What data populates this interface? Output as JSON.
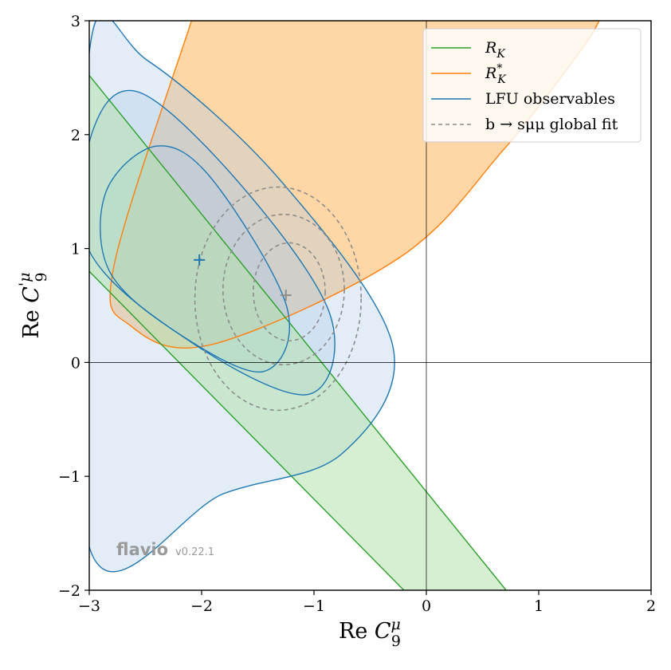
{
  "chart_data": {
    "type": "contour",
    "xlabel": "Re C_9^μ",
    "ylabel": "Re C_9'^μ",
    "xlim": [
      -3,
      2
    ],
    "ylim": [
      -2,
      3
    ],
    "xticks": [
      "−3",
      "−2",
      "−1",
      "0",
      "1",
      "2"
    ],
    "yticks": [
      "−2",
      "−1",
      "0",
      "1",
      "2",
      "3"
    ],
    "legend_position": "top-right",
    "legend": [
      {
        "label": "R_K",
        "color": "#2ca02c",
        "style": "solid"
      },
      {
        "label": "R_K^*",
        "color": "#ff7f0e",
        "style": "solid"
      },
      {
        "label": "LFU observables",
        "color": "#1f77b4",
        "style": "solid"
      },
      {
        "label": "b → sμμ global fit",
        "color": "#8c8c8c",
        "style": "dashed"
      }
    ],
    "series": [
      {
        "name": "R_K",
        "kind": "band",
        "color": "#2ca02c",
        "fill": "#b5e2ad",
        "upper_line": [
          [
            -3,
            2.52
          ],
          [
            0.71,
            -2
          ]
        ],
        "lower_line": [
          [
            -3,
            0.8
          ],
          [
            -0.2,
            -2
          ]
        ]
      },
      {
        "name": "R_K^*",
        "kind": "band",
        "color": "#ff7f0e",
        "fill": "#ffc98a",
        "outline": [
          [
            -2.09,
            3
          ],
          [
            -2.78,
            0.85
          ],
          [
            -2.63,
            0.32
          ],
          [
            -1.9,
            0.16
          ],
          [
            -0.24,
            0.92
          ],
          [
            0.68,
            1.86
          ],
          [
            1.36,
            2.72
          ],
          [
            1.54,
            3
          ]
        ]
      },
      {
        "name": "LFU observables",
        "kind": "contours",
        "color": "#1f77b4",
        "fill": "#aac8e6",
        "best_fit": [
          -2.02,
          0.9
        ],
        "levels": [
          {
            "sigma": 1,
            "points": [
              [
                -2.85,
                1.5
              ],
              [
                -2.4,
                1.9
              ],
              [
                -1.9,
                1.6
              ],
              [
                -1.24,
                0.48
              ],
              [
                -1.45,
                -0.08
              ],
              [
                -2.2,
                0.25
              ],
              [
                -2.82,
                0.8
              ]
            ]
          },
          {
            "sigma": 2,
            "points": [
              [
                -2.98,
                2.0
              ],
              [
                -2.55,
                2.37
              ],
              [
                -1.6,
                1.5
              ],
              [
                -0.85,
                0.4
              ],
              [
                -1.05,
                -0.28
              ],
              [
                -2.05,
                0.15
              ],
              [
                -3.0,
                0.98
              ]
            ]
          },
          {
            "sigma": 3,
            "points": [
              [
                -3.0,
                2.72
              ],
              [
                -2.48,
                2.65
              ],
              [
                -1.3,
                1.6
              ],
              [
                -0.3,
                0.15
              ],
              [
                -0.75,
                -0.8
              ],
              [
                -1.8,
                -1.15
              ],
              [
                -3.0,
                -1.62
              ]
            ]
          }
        ]
      },
      {
        "name": "b → sμμ global fit",
        "kind": "contours",
        "color": "#8c8c8c",
        "style": "dashed",
        "best_fit": [
          -1.25,
          0.59
        ],
        "levels": [
          {
            "sigma": 1,
            "center": [
              -1.22,
              0.62
            ],
            "rx": 0.32,
            "ry": 0.43
          },
          {
            "sigma": 2,
            "center": [
              -1.27,
              0.64
            ],
            "rx": 0.54,
            "ry": 0.66
          },
          {
            "sigma": 3,
            "center": [
              -1.32,
              0.56
            ],
            "rx": 0.74,
            "ry": 0.98
          }
        ]
      }
    ]
  },
  "watermark": {
    "name": "flavio",
    "version": "v0.22.1"
  }
}
